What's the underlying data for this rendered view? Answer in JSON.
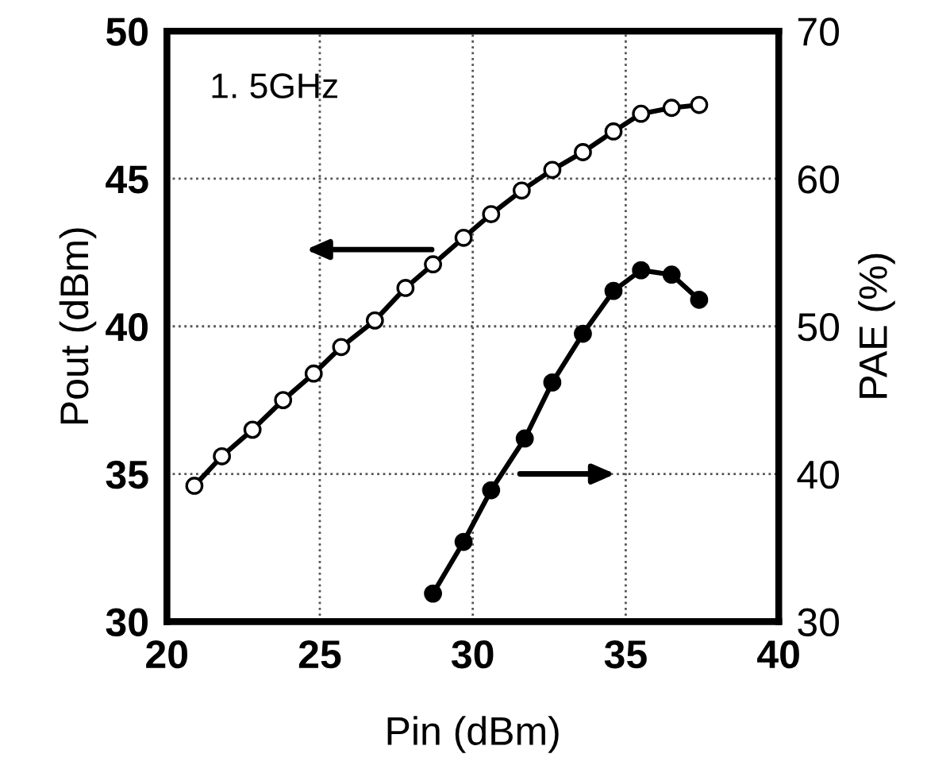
{
  "chart_data": {
    "type": "line",
    "xlabel": "Pin (dBm)",
    "ylabel": "Pout (dBm)",
    "y2label": "PAE (%)",
    "annotations": [
      "1. 5GHz"
    ],
    "xlim": [
      20,
      40
    ],
    "xticks": [
      20,
      25,
      30,
      35,
      40
    ],
    "ylim": [
      30,
      50
    ],
    "yticks": [
      30,
      35,
      40,
      45,
      50
    ],
    "y2lim": [
      30,
      70
    ],
    "y2ticks": [
      30,
      40,
      50,
      60,
      70
    ],
    "grid": true,
    "legend": false,
    "marker": "circle",
    "line_style": "solid",
    "series": [
      {
        "color": "#000000",
        "x": [
          20.9,
          21.8,
          22.8,
          23.8,
          24.8,
          25.7,
          26.8,
          27.8,
          28.7,
          29.7,
          30.6,
          31.6,
          32.6,
          33.6,
          34.6,
          35.5,
          36.5,
          37.4
        ],
        "values": [
          34.6,
          35.6,
          36.5,
          37.5,
          38.4,
          39.3,
          40.2,
          41.3,
          42.1,
          43.0,
          43.8,
          44.6,
          45.3,
          45.9,
          46.6,
          47.2,
          47.4,
          47.5
        ]
      },
      {
        "color": "#000000",
        "axis": "y2",
        "x": [
          28.7,
          29.7,
          30.6,
          31.7,
          32.6,
          33.6,
          34.6,
          35.5,
          36.5,
          37.4
        ],
        "values": [
          31.9,
          35.4,
          38.9,
          42.4,
          46.2,
          49.5,
          52.4,
          53.8,
          53.5,
          51.8
        ]
      }
    ]
  }
}
